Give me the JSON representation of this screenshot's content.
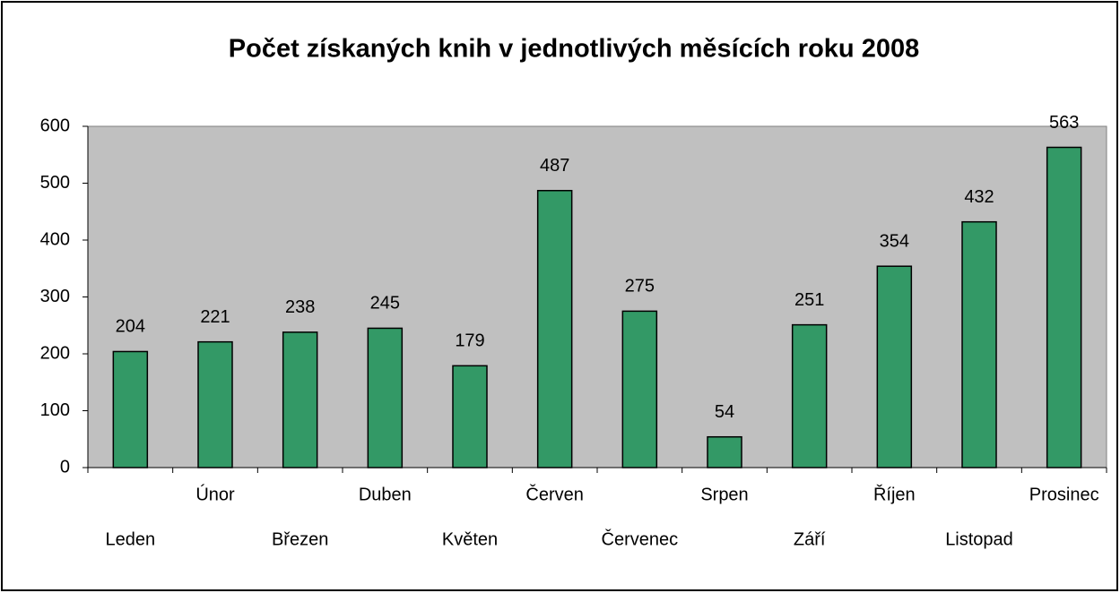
{
  "chart_data": {
    "type": "bar",
    "title": "Počet získaných knih v jednotlivých měsících roku 2008",
    "categories": [
      "Leden",
      "Únor",
      "Březen",
      "Duben",
      "Květen",
      "Červen",
      "Červenec",
      "Srpen",
      "Září",
      "Říjen",
      "Listopad",
      "Prosinec"
    ],
    "values": [
      204,
      221,
      238,
      245,
      179,
      487,
      275,
      54,
      251,
      354,
      432,
      563
    ],
    "color": "#339966",
    "ylim": [
      0,
      600
    ],
    "yticks": [
      0,
      100,
      200,
      300,
      400,
      500,
      600
    ],
    "grid": false
  }
}
